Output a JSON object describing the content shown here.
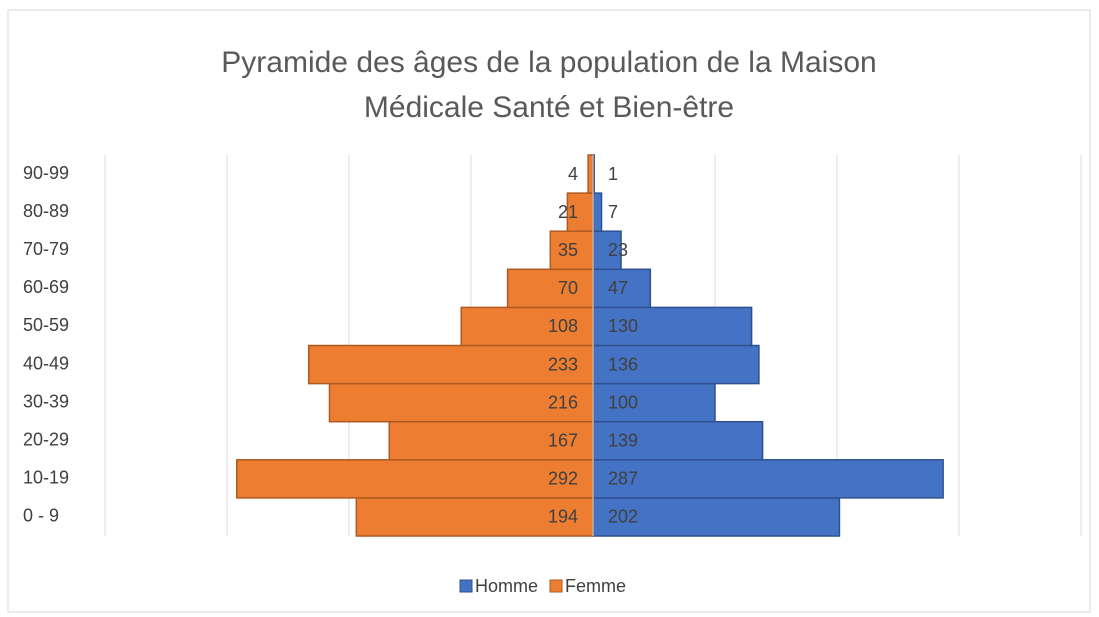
{
  "chart_data": {
    "type": "pyramid",
    "title": "Pyramide des âges de la population de la Maison Médicale Santé et Bien-être",
    "categories": [
      "0 - 9",
      "10-19",
      "20-29",
      "30-39",
      "40-49",
      "50-59",
      "60-69",
      "70-79",
      "80-89",
      "90-99"
    ],
    "series": [
      {
        "name": "Homme",
        "color": "#4472c4",
        "values": [
          202,
          287,
          139,
          100,
          136,
          130,
          47,
          23,
          7,
          1
        ]
      },
      {
        "name": "Femme",
        "color": "#ed7d31",
        "values": [
          194,
          292,
          167,
          216,
          233,
          108,
          70,
          35,
          21,
          4
        ]
      }
    ],
    "xlim": [
      -400,
      400
    ],
    "xticks": [
      -400,
      -300,
      -200,
      -100,
      0,
      100,
      200,
      300,
      400
    ],
    "grid": true
  }
}
